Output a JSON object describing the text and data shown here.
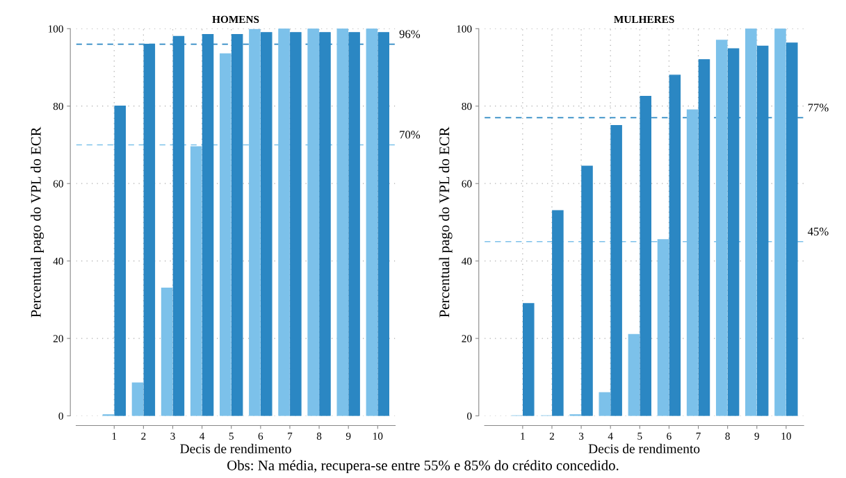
{
  "chart_data": [
    {
      "type": "bar",
      "title": "HOMENS",
      "xlabel": "Decis de rendimento",
      "ylabel": "Percentual pago do VPL do ECR",
      "categories": [
        "1",
        "2",
        "3",
        "4",
        "5",
        "6",
        "7",
        "8",
        "9",
        "10"
      ],
      "series": [
        {
          "color": "#7cc1ea",
          "values": [
            0.3,
            8.5,
            33,
            69.5,
            93.5,
            99.8,
            100,
            100,
            100,
            100
          ]
        },
        {
          "color": "#2b87c3",
          "values": [
            80,
            96,
            98,
            98.5,
            98.5,
            99,
            99,
            99,
            99,
            99
          ]
        }
      ],
      "ylim": [
        0,
        100
      ],
      "yticks": [
        0,
        20,
        40,
        60,
        80,
        100
      ],
      "grid": true,
      "ref_lines": [
        {
          "axis": "y",
          "value": 96,
          "label": "96%",
          "color": "#2b87c3",
          "line_style": "dashed"
        },
        {
          "axis": "y",
          "value": 70,
          "label": "70%",
          "color": "#7cc1ea",
          "line_style": "dashed"
        }
      ],
      "annotations": [
        "Obs: Na média, recupera-se entre 55% e 85% do crédito concedido."
      ]
    },
    {
      "type": "bar",
      "title": "MULHERES",
      "xlabel": "Decis de rendimento",
      "ylabel": "Percentual pago do VPL do ECR",
      "categories": [
        "1",
        "2",
        "3",
        "4",
        "5",
        "6",
        "7",
        "8",
        "9",
        "10"
      ],
      "series": [
        {
          "color": "#7cc1ea",
          "values": [
            0,
            0,
            0.3,
            6,
            21,
            45.5,
            79,
            97,
            100,
            100
          ]
        },
        {
          "color": "#2b87c3",
          "values": [
            29,
            53,
            64.5,
            75,
            82.5,
            88,
            92,
            94.8,
            95.5,
            96.3
          ]
        }
      ],
      "ylim": [
        0,
        100
      ],
      "yticks": [
        0,
        20,
        40,
        60,
        80,
        100
      ],
      "grid": true,
      "ref_lines": [
        {
          "axis": "y",
          "value": 77,
          "label": "77%",
          "color": "#2b87c3",
          "line_style": "dashed"
        },
        {
          "axis": "y",
          "value": 45,
          "label": "45%",
          "color": "#7cc1ea",
          "line_style": "dashed"
        }
      ]
    }
  ]
}
